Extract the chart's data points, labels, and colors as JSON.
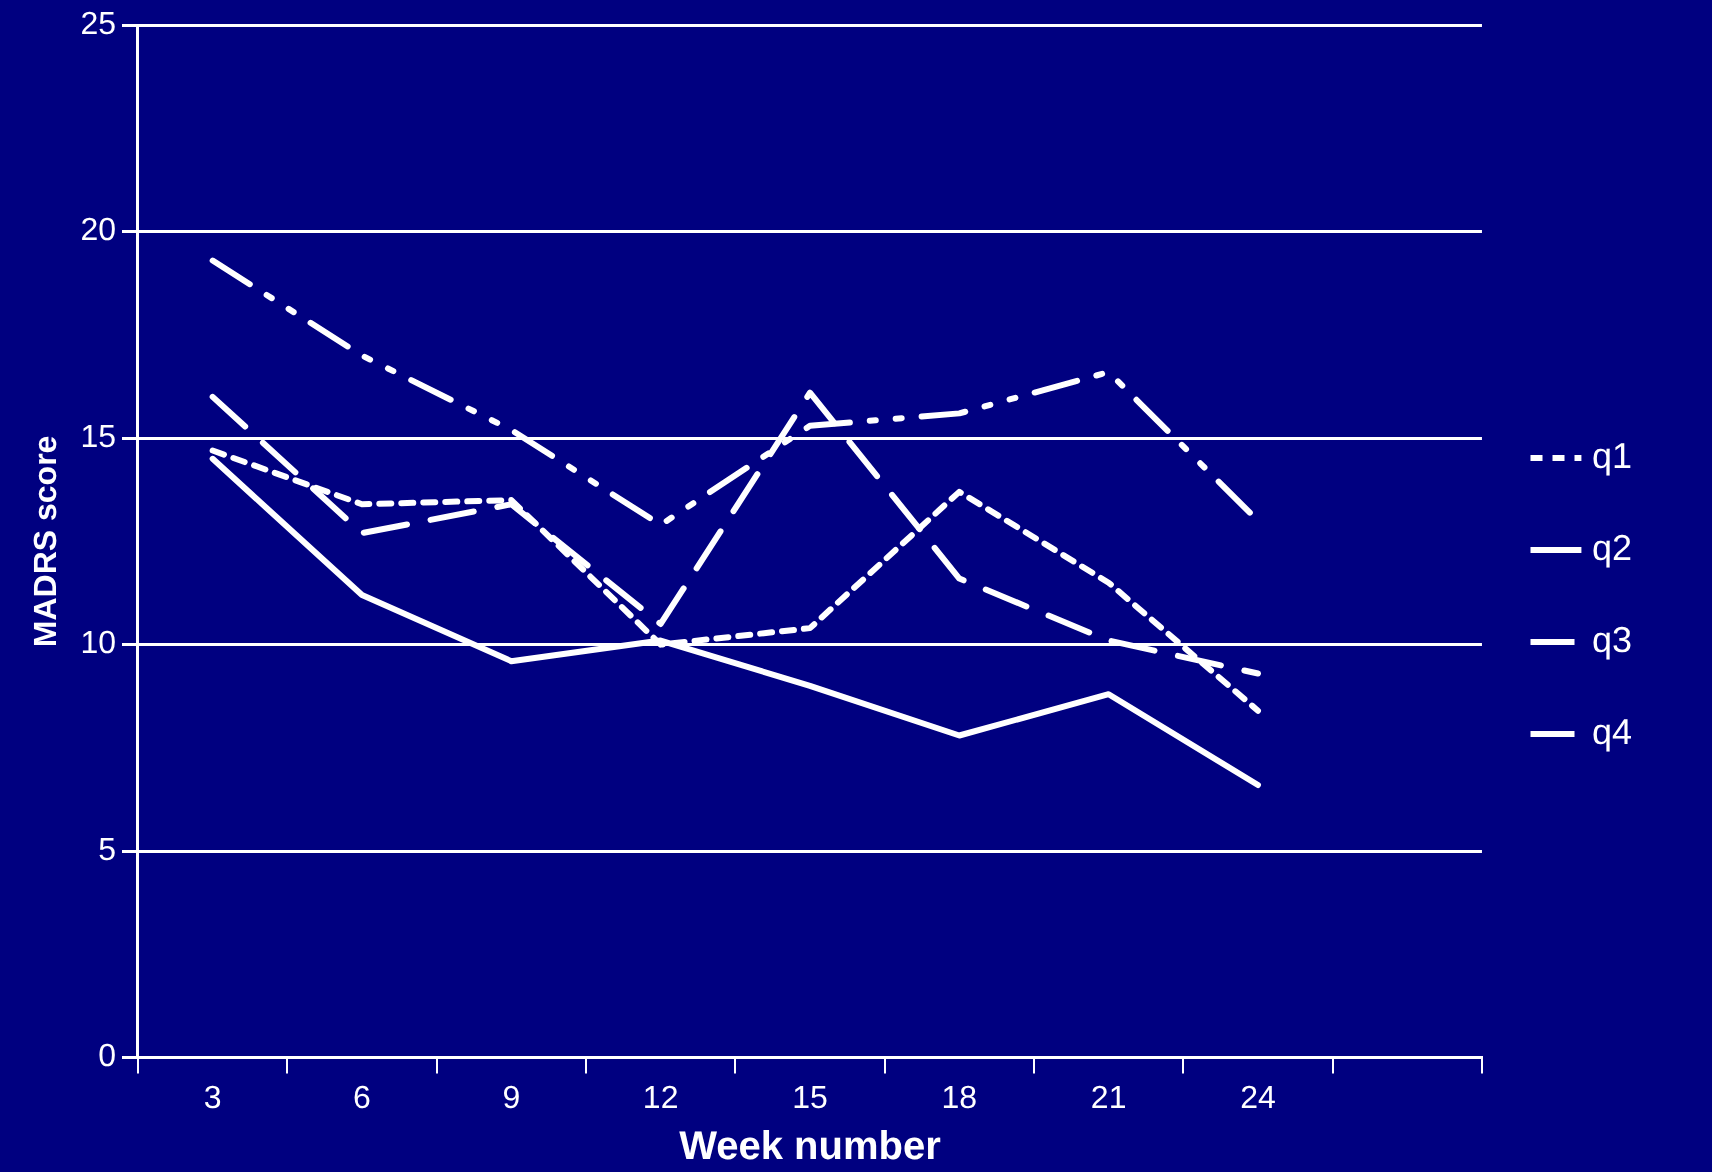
{
  "chart_data": {
    "type": "line",
    "xlabel": "Week number",
    "ylabel": "MADRS score",
    "categories": [
      "3",
      "6",
      "9",
      "12",
      "15",
      "18",
      "21",
      "24",
      null
    ],
    "ylim": [
      0,
      25
    ],
    "yticks": [
      0,
      5,
      10,
      15,
      20,
      25
    ],
    "grid": "y",
    "legend": "right",
    "marker": "none",
    "series": [
      {
        "name": "q1",
        "color": "#ffffff",
        "line_style": "dotted",
        "values": [
          14.7,
          13.4,
          13.5,
          10.0,
          10.4,
          13.7,
          11.5,
          8.4,
          null
        ]
      },
      {
        "name": "q2",
        "color": "#ffffff",
        "line_style": "solid",
        "values": [
          14.5,
          11.2,
          9.6,
          10.1,
          9.0,
          7.8,
          8.8,
          6.6,
          null
        ]
      },
      {
        "name": "q3",
        "color": "#ffffff",
        "line_style": "dashed",
        "values": [
          16.0,
          12.7,
          13.4,
          10.5,
          16.1,
          11.6,
          10.1,
          9.3,
          null
        ]
      },
      {
        "name": "q4",
        "color": "#ffffff",
        "line_style": "dashdot",
        "values": [
          19.3,
          17.0,
          15.2,
          12.9,
          15.3,
          15.6,
          16.6,
          13.0,
          null
        ]
      }
    ]
  }
}
